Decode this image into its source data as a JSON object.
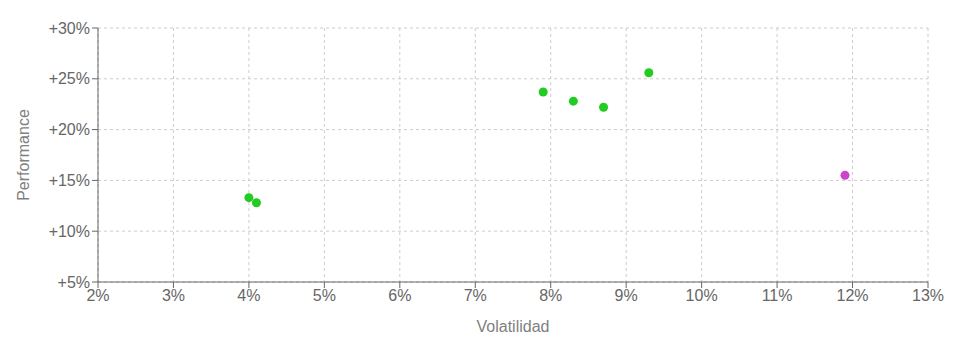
{
  "chart_data": {
    "type": "scatter",
    "xlabel": "Volatilidad",
    "ylabel": "Performance",
    "xlim": [
      0.02,
      0.13
    ],
    "ylim": [
      0.05,
      0.3
    ],
    "xticks": [
      {
        "value": 0.02,
        "label": "2%"
      },
      {
        "value": 0.03,
        "label": "3%"
      },
      {
        "value": 0.04,
        "label": "4%"
      },
      {
        "value": 0.05,
        "label": "5%"
      },
      {
        "value": 0.06,
        "label": "6%"
      },
      {
        "value": 0.07,
        "label": "7%"
      },
      {
        "value": 0.08,
        "label": "8%"
      },
      {
        "value": 0.09,
        "label": "9%"
      },
      {
        "value": 0.1,
        "label": "10%"
      },
      {
        "value": 0.11,
        "label": "11%"
      },
      {
        "value": 0.12,
        "label": "12%"
      },
      {
        "value": 0.13,
        "label": "13%"
      }
    ],
    "yticks": [
      {
        "value": 0.05,
        "label": "+5%"
      },
      {
        "value": 0.1,
        "label": "+10%"
      },
      {
        "value": 0.15,
        "label": "+15%"
      },
      {
        "value": 0.2,
        "label": "+20%"
      },
      {
        "value": 0.25,
        "label": "+25%"
      },
      {
        "value": 0.3,
        "label": "+30%"
      }
    ],
    "grid": true,
    "marker": "circle",
    "series": [
      {
        "color": "#22cc22",
        "x": [
          0.04,
          0.041,
          0.079,
          0.083,
          0.087,
          0.093
        ],
        "values": [
          0.133,
          0.128,
          0.237,
          0.228,
          0.222,
          0.256
        ]
      },
      {
        "color": "#cc44cc",
        "x": [
          0.119
        ],
        "values": [
          0.155
        ]
      }
    ]
  }
}
